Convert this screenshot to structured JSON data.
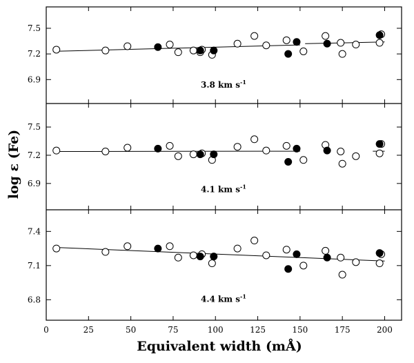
{
  "chart_data": {
    "type": "scatter",
    "xlabel": "Equivalent width (mÅ)",
    "ylabel": "log ε (Fe)",
    "xlim": [
      0,
      210
    ],
    "x_ticks": [
      0,
      25,
      50,
      75,
      100,
      125,
      150,
      175,
      200
    ],
    "x_tick_labels": [
      "0",
      "25",
      "50",
      "75",
      "100",
      "125",
      "150",
      "175",
      "200"
    ],
    "shared_x": true,
    "panels": [
      {
        "label": "3.8 km s",
        "label_sup": "-1",
        "ylim": [
          6.62,
          7.75
        ],
        "y_ticks": [
          6.9,
          7.2,
          7.5
        ],
        "y_tick_labels": [
          "6.9",
          "7.2",
          "7.5"
        ],
        "open": [
          [
            6,
            7.25
          ],
          [
            35,
            7.24
          ],
          [
            48,
            7.29
          ],
          [
            73,
            7.31
          ],
          [
            78,
            7.22
          ],
          [
            87,
            7.24
          ],
          [
            91,
            7.22
          ],
          [
            92,
            7.25
          ],
          [
            98,
            7.19
          ],
          [
            113,
            7.32
          ],
          [
            123,
            7.41
          ],
          [
            130,
            7.3
          ],
          [
            142,
            7.36
          ],
          [
            152,
            7.23
          ],
          [
            165,
            7.41
          ],
          [
            174,
            7.33
          ],
          [
            175,
            7.2
          ],
          [
            183,
            7.31
          ],
          [
            197,
            7.33
          ],
          [
            198,
            7.43
          ]
        ],
        "filled": [
          [
            66,
            7.28
          ],
          [
            91,
            7.24
          ],
          [
            99,
            7.24
          ],
          [
            143,
            7.2
          ],
          [
            148,
            7.34
          ],
          [
            166,
            7.32
          ],
          [
            197,
            7.42
          ]
        ],
        "fit_segments": [
          [
            [
              4,
              7.23
            ],
            [
              150,
              7.305
            ]
          ],
          [
            [
              153,
              7.32
            ],
            [
              200,
              7.34
            ]
          ]
        ]
      },
      {
        "label": "4.1 km s",
        "label_sup": "-1",
        "ylim": [
          6.62,
          7.75
        ],
        "y_ticks": [
          6.9,
          7.2,
          7.5
        ],
        "y_tick_labels": [
          "6.9",
          "7.2",
          "7.5"
        ],
        "open": [
          [
            6,
            7.25
          ],
          [
            35,
            7.24
          ],
          [
            48,
            7.28
          ],
          [
            73,
            7.3
          ],
          [
            78,
            7.19
          ],
          [
            87,
            7.21
          ],
          [
            92,
            7.22
          ],
          [
            98,
            7.15
          ],
          [
            113,
            7.29
          ],
          [
            123,
            7.37
          ],
          [
            130,
            7.25
          ],
          [
            142,
            7.3
          ],
          [
            152,
            7.15
          ],
          [
            165,
            7.31
          ],
          [
            174,
            7.24
          ],
          [
            175,
            7.11
          ],
          [
            183,
            7.19
          ],
          [
            197,
            7.22
          ],
          [
            198,
            7.32
          ]
        ],
        "filled": [
          [
            66,
            7.27
          ],
          [
            91,
            7.21
          ],
          [
            99,
            7.21
          ],
          [
            143,
            7.13
          ],
          [
            148,
            7.27
          ],
          [
            166,
            7.25
          ],
          [
            197,
            7.32
          ]
        ],
        "fit_segments": [
          [
            [
              4,
              7.24
            ],
            [
              150,
              7.243
            ]
          ],
          [
            [
              193,
              7.243
            ],
            [
              200,
              7.243
            ]
          ]
        ]
      },
      {
        "label": "4.4 km s",
        "label_sup": "-1",
        "ylim": [
          6.62,
          7.59
        ],
        "y_ticks": [
          6.8,
          7.1,
          7.4
        ],
        "y_tick_labels": [
          "6.8",
          "7.1",
          "7.4"
        ],
        "open": [
          [
            6,
            7.25
          ],
          [
            35,
            7.22
          ],
          [
            48,
            7.27
          ],
          [
            73,
            7.27
          ],
          [
            78,
            7.17
          ],
          [
            87,
            7.19
          ],
          [
            92,
            7.2
          ],
          [
            98,
            7.12
          ],
          [
            113,
            7.25
          ],
          [
            123,
            7.32
          ],
          [
            130,
            7.19
          ],
          [
            142,
            7.24
          ],
          [
            152,
            7.1
          ],
          [
            165,
            7.23
          ],
          [
            174,
            7.17
          ],
          [
            175,
            7.02
          ],
          [
            183,
            7.13
          ],
          [
            197,
            7.12
          ],
          [
            198,
            7.2
          ]
        ],
        "filled": [
          [
            66,
            7.25
          ],
          [
            91,
            7.18
          ],
          [
            99,
            7.18
          ],
          [
            143,
            7.07
          ],
          [
            148,
            7.2
          ],
          [
            166,
            7.17
          ],
          [
            197,
            7.21
          ]
        ],
        "fit_segments": [
          [
            [
              4,
              7.26
            ],
            [
              200,
              7.14
            ]
          ]
        ]
      }
    ]
  }
}
